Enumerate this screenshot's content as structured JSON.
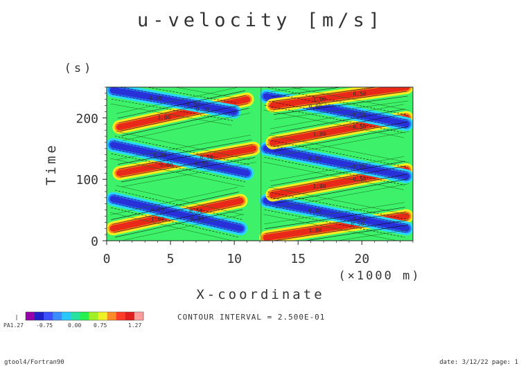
{
  "chart_data": {
    "type": "heatmap",
    "title": "u-velocity [m/s]",
    "xlabel": "X-coordinate",
    "x_unit": "(×1000 m)",
    "ylabel": "Time",
    "y_unit": "(s)",
    "xlim": [
      0,
      24
    ],
    "ylim": [
      0,
      250
    ],
    "x_ticks": [
      0,
      5,
      10,
      15,
      20
    ],
    "y_ticks": [
      0,
      100,
      200
    ],
    "x_tick_labels": [
      "0",
      "5",
      "10",
      "15",
      "20"
    ],
    "y_tick_labels": [
      "0",
      "100",
      "200"
    ],
    "contour_interval_text": "CONTOUR INTERVAL = 2.500E-01",
    "contour_labels": [
      "0.00",
      "0.50",
      "1.00",
      "-0.50"
    ],
    "colorbar": {
      "min_label": "PA1.27",
      "tick_labels": [
        "-0.75",
        "0.00",
        "0.75",
        "1.27"
      ],
      "colors": [
        "#9400a8",
        "#2020c8",
        "#3c50ff",
        "#3c8cff",
        "#28c8ff",
        "#28e0a0",
        "#28f050",
        "#a0f028",
        "#f0f028",
        "#ff8c28",
        "#ff3c28",
        "#e01e1e",
        "#ff9c9c"
      ]
    },
    "field_colors": {
      "background": "#3df26a",
      "positive_core": "#e82818",
      "positive_mid": "#ff8a1c",
      "positive_edge": "#f2f020",
      "negative_core": "#2830d8",
      "negative_mid": "#2878ff",
      "negative_edge": "#28d8ff"
    },
    "series": [
      {
        "name": "+",
        "x": [
          0.5,
          10.5
        ],
        "y": [
          20,
          65
        ]
      },
      {
        "name": "-",
        "x": [
          0.5,
          10.5
        ],
        "y": [
          68,
          20
        ]
      },
      {
        "name": "+",
        "x": [
          1.0,
          11.5
        ],
        "y": [
          110,
          150
        ]
      },
      {
        "name": "-",
        "x": [
          0.5,
          11.0
        ],
        "y": [
          156,
          110
        ]
      },
      {
        "name": "+",
        "x": [
          1.0,
          11.0
        ],
        "y": [
          185,
          230
        ]
      },
      {
        "name": "-",
        "x": [
          0.5,
          10.0
        ],
        "y": [
          245,
          210
        ]
      },
      {
        "name": "+",
        "x": [
          12.5,
          23.5
        ],
        "y": [
          5,
          40
        ]
      },
      {
        "name": "-",
        "x": [
          12.5,
          23.5
        ],
        "y": [
          65,
          20
        ]
      },
      {
        "name": "+",
        "x": [
          13.0,
          23.5
        ],
        "y": [
          75,
          115
        ]
      },
      {
        "name": "-",
        "x": [
          12.5,
          23.5
        ],
        "y": [
          150,
          105
        ]
      },
      {
        "name": "+",
        "x": [
          13.0,
          23.5
        ],
        "y": [
          160,
          200
        ]
      },
      {
        "name": "-",
        "x": [
          12.5,
          23.5
        ],
        "y": [
          235,
          190
        ]
      },
      {
        "name": "+",
        "x": [
          13.0,
          23.5
        ],
        "y": [
          220,
          250
        ]
      }
    ]
  },
  "footer": {
    "left": "gtool4/Fortran90",
    "right": "date: 3/12/22 page: 1"
  }
}
